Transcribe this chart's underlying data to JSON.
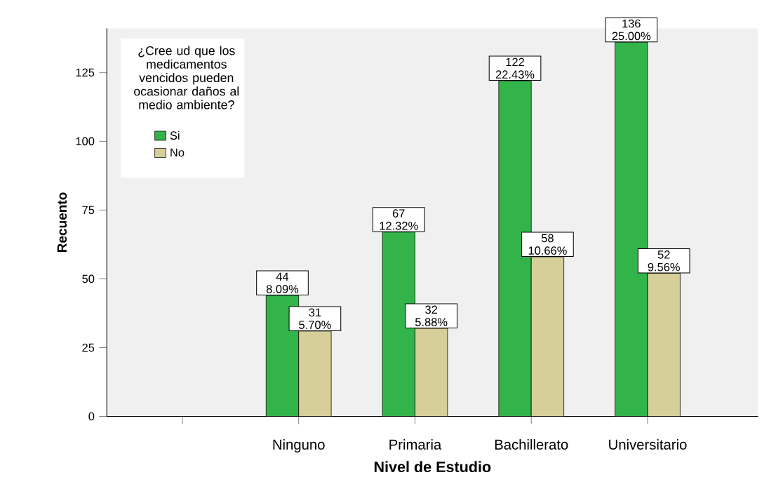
{
  "chart_data": {
    "type": "bar",
    "xlabel": "Nivel de Estudio",
    "ylabel": "Recuento",
    "legend_title": "¿Cree ud que los medicamentos vencidos pueden ocasionar daños al medio ambiente?",
    "categories": [
      null,
      "Ninguno",
      "Primaria",
      "Bachillerato",
      "Universitario"
    ],
    "ylim": [
      0,
      141
    ],
    "yticks": [
      0,
      25,
      50,
      75,
      100,
      125
    ],
    "legend": "top left",
    "series": [
      {
        "name": "Si",
        "color": "#33b44a",
        "values": [
          null,
          44,
          67,
          122,
          136
        ],
        "value_labels": [
          null,
          "44 8.09%",
          "67 12.32%",
          "122 22.43%",
          "136 25.00%"
        ]
      },
      {
        "name": "No",
        "color": "#d6cf9a",
        "values": [
          null,
          31,
          32,
          58,
          52
        ],
        "value_labels": [
          null,
          "31 5.70%",
          "32 5.88%",
          "58 10.66%",
          "52 9.56%"
        ]
      }
    ]
  }
}
